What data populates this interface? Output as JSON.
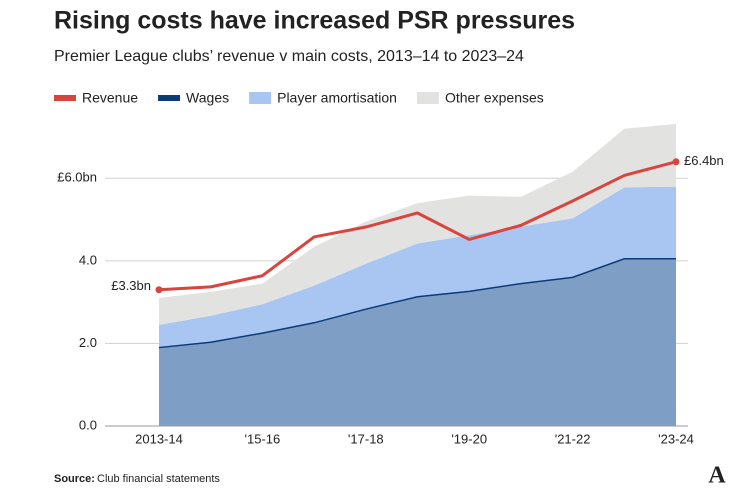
{
  "chart_data": {
    "type": "area",
    "title": "Rising costs have increased PSR pressures",
    "subtitle": "Premier League clubs’ revenue v main costs, 2013–14 to 2023–24",
    "categories": [
      "2013-14",
      null,
      "'15-16",
      null,
      "'17-18",
      null,
      "'19-20",
      null,
      "'21-22",
      null,
      "'23-24"
    ],
    "ylim": [
      0,
      7.8
    ],
    "yticks": [
      {
        "value": 0,
        "label": "0.0"
      },
      {
        "value": 2,
        "label": "2.0"
      },
      {
        "value": 4,
        "label": "4.0"
      },
      {
        "value": 6,
        "label": "£6.0bn"
      }
    ],
    "grid": true,
    "stacked": true,
    "series": [
      {
        "name": "Revenue",
        "type": "line",
        "color": "#d9453e",
        "values": [
          3.3,
          3.37,
          3.64,
          4.58,
          4.82,
          5.16,
          4.52,
          4.86,
          5.45,
          6.07,
          6.4
        ],
        "value_labels": [
          "£3.3bn",
          null,
          null,
          null,
          null,
          null,
          null,
          null,
          null,
          null,
          "£6.4bn"
        ]
      },
      {
        "name": "Wages",
        "color": "#0b3b7c",
        "fill": "#7f9ec6",
        "values": [
          1.9,
          2.03,
          2.25,
          2.5,
          2.83,
          3.13,
          3.26,
          3.45,
          3.6,
          4.05,
          4.05
        ]
      },
      {
        "name": "Player amortisation",
        "color": "#9dbcf0",
        "fill": "#a9c5f1",
        "values": [
          0.55,
          0.64,
          0.7,
          0.9,
          1.1,
          1.29,
          1.36,
          1.38,
          1.43,
          1.73,
          1.75
        ]
      },
      {
        "name": "Other expenses",
        "color": "#d3d3d1",
        "fill": "#e2e2e0",
        "values": [
          0.65,
          0.58,
          0.5,
          0.94,
          1.02,
          0.98,
          0.96,
          0.72,
          1.13,
          1.42,
          1.52
        ]
      }
    ]
  },
  "source_label": "Source:",
  "source": "Club financial statements",
  "logo": "A"
}
